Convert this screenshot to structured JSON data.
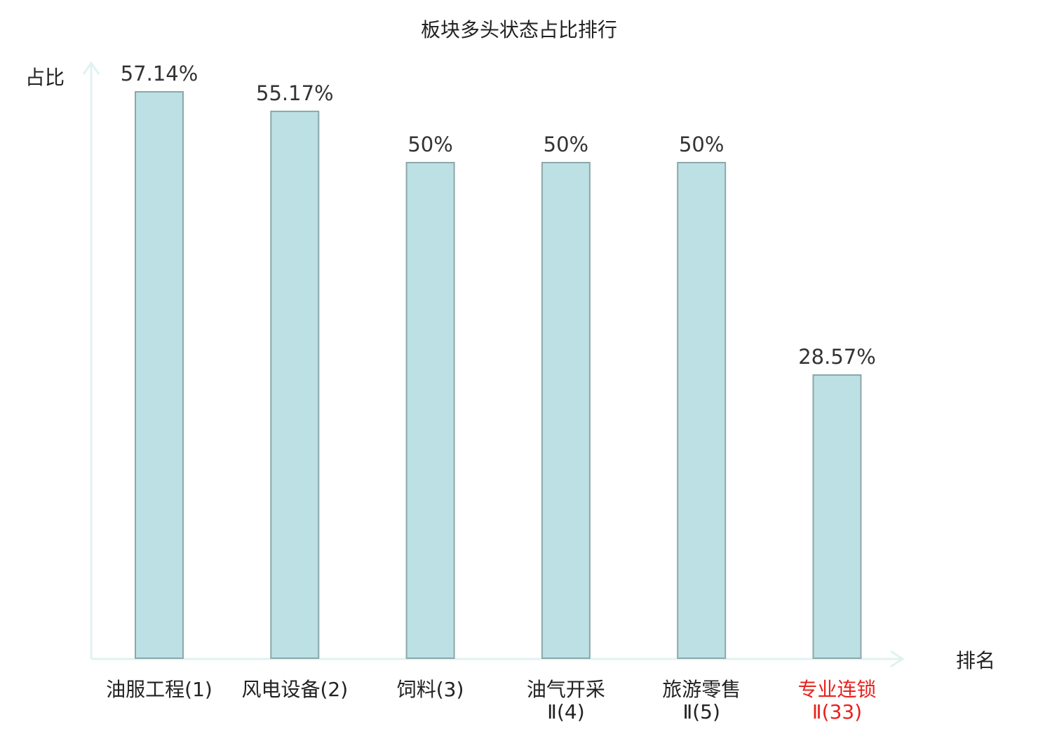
{
  "chart_data": {
    "type": "bar",
    "title": "板块多头状态占比排行",
    "ylabel": "占比",
    "xlabel": "排名",
    "categories": [
      {
        "name": "油服工程",
        "suffix": "(1)",
        "line2": "",
        "highlight": false
      },
      {
        "name": "风电设备",
        "suffix": "(2)",
        "line2": "",
        "highlight": false
      },
      {
        "name": "饲料",
        "suffix": "(3)",
        "line2": "",
        "highlight": false
      },
      {
        "name": "油气开采",
        "suffix": "",
        "line2": "Ⅱ(4)",
        "highlight": false
      },
      {
        "name": "旅游零售",
        "suffix": "",
        "line2": "Ⅱ(5)",
        "highlight": false
      },
      {
        "name": "专业连锁",
        "suffix": "",
        "line2": "Ⅱ(33)",
        "highlight": true
      }
    ],
    "values": [
      57.14,
      55.17,
      50,
      50,
      50,
      28.57
    ],
    "value_labels": [
      "57.14%",
      "55.17%",
      "50%",
      "50%",
      "50%",
      "28.57%"
    ],
    "ylim": [
      0,
      57.14
    ],
    "grid": false,
    "colors": {
      "bar_fill": "#bce0e3",
      "bar_stroke": "#8aa8aa",
      "axis": "#e0f2f0",
      "text": "#333333",
      "label": "#222222",
      "highlight": "#e8221e"
    }
  }
}
